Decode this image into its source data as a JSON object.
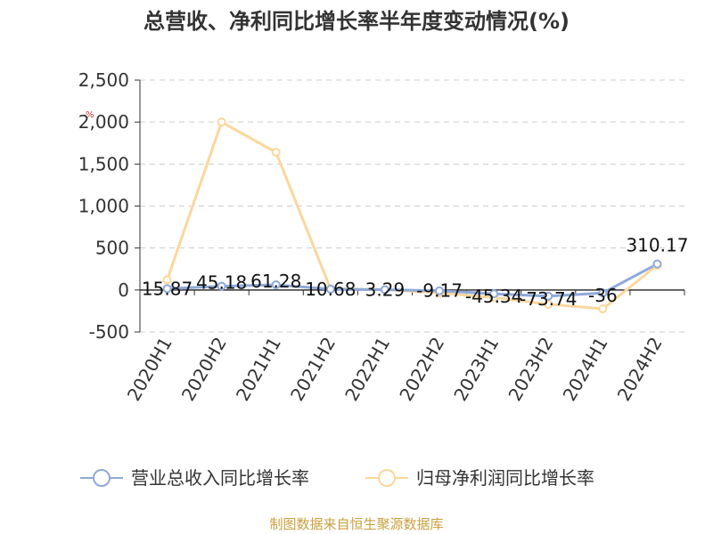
{
  "chart_data": {
    "type": "line",
    "title": "总营收、净利同比增长率半年度变动情况(%)",
    "categories": [
      "2020H1",
      "2020H2",
      "2021H1",
      "2021H2",
      "2022H1",
      "2022H2",
      "2023H1",
      "2023H2",
      "2024H1",
      "2024H2"
    ],
    "series": [
      {
        "name": "营业总收入同比增长率",
        "color": "#8fa9d8",
        "values": [
          15.87,
          45.18,
          61.28,
          10.68,
          3.29,
          -9.17,
          -45.34,
          -73.74,
          -36,
          310.17
        ],
        "labels": [
          "15.87",
          "45.18",
          "61.28",
          "10.68",
          "3.29",
          "-9.17",
          "-45.34",
          "-73.74",
          "-36",
          "310.17"
        ]
      },
      {
        "name": "归母净利润同比增长率",
        "color": "#fad79c",
        "values": [
          120,
          2000,
          1640,
          15,
          5,
          -35,
          -90,
          -170,
          -225,
          295
        ]
      }
    ],
    "y_ticks": [
      "2,500",
      "2,000",
      "1,500",
      "1,000",
      "500",
      "0",
      "-500"
    ],
    "ylim": [
      -500,
      2500
    ],
    "grid": true,
    "legend_position": "bottom",
    "marker": "%",
    "marker_color": "#cc3333"
  },
  "source_text": "制图数据来自恒生聚源数据库",
  "source_color": "#c8a040"
}
